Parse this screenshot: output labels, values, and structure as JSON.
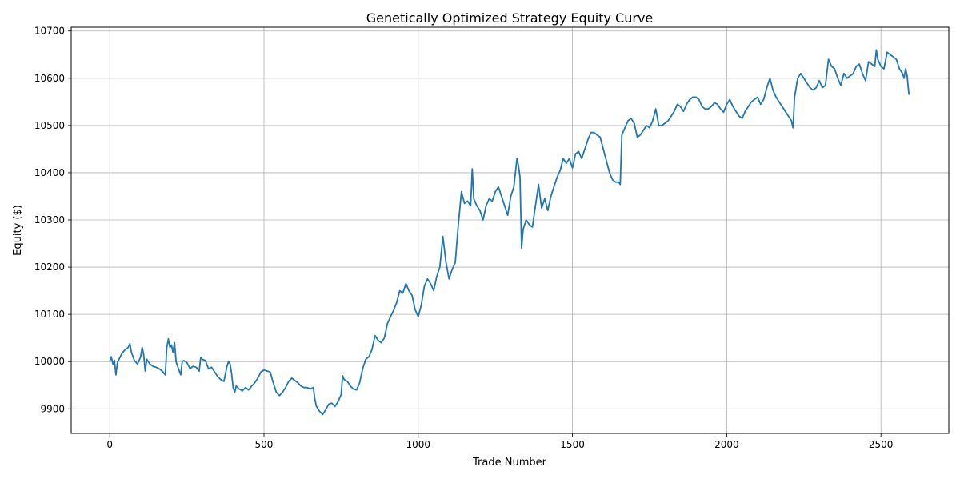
{
  "chart_data": {
    "type": "line",
    "title": "Genetically Optimized Strategy Equity Curve",
    "xlabel": "Trade Number",
    "ylabel": "Equity ($)",
    "xlim": [
      -125,
      2720
    ],
    "ylim": [
      9848,
      10708
    ],
    "xticks": [
      0,
      500,
      1000,
      1500,
      2000,
      2500
    ],
    "yticks": [
      9900,
      10000,
      10100,
      10200,
      10300,
      10400,
      10500,
      10600,
      10700
    ],
    "grid": true,
    "line_color": "#1f77b4",
    "series": [
      {
        "points": [
          [
            0,
            10000
          ],
          [
            5,
            10010
          ],
          [
            10,
            9995
          ],
          [
            15,
            10003
          ],
          [
            20,
            9972
          ],
          [
            25,
            9998
          ],
          [
            30,
            10005
          ],
          [
            40,
            10018
          ],
          [
            50,
            10025
          ],
          [
            60,
            10030
          ],
          [
            65,
            10038
          ],
          [
            70,
            10020
          ],
          [
            80,
            10002
          ],
          [
            90,
            9995
          ],
          [
            100,
            10010
          ],
          [
            105,
            10030
          ],
          [
            110,
            10015
          ],
          [
            115,
            9980
          ],
          [
            120,
            10005
          ],
          [
            130,
            9995
          ],
          [
            140,
            9990
          ],
          [
            150,
            9988
          ],
          [
            160,
            9985
          ],
          [
            170,
            9980
          ],
          [
            180,
            9972
          ],
          [
            185,
            10030
          ],
          [
            190,
            10048
          ],
          [
            195,
            10030
          ],
          [
            200,
            10035
          ],
          [
            205,
            10020
          ],
          [
            210,
            10040
          ],
          [
            215,
            10000
          ],
          [
            220,
            9990
          ],
          [
            230,
            9972
          ],
          [
            235,
            10000
          ],
          [
            240,
            10002
          ],
          [
            250,
            9998
          ],
          [
            260,
            9985
          ],
          [
            270,
            9990
          ],
          [
            280,
            9988
          ],
          [
            290,
            9980
          ],
          [
            295,
            10008
          ],
          [
            300,
            10005
          ],
          [
            310,
            10002
          ],
          [
            320,
            9985
          ],
          [
            330,
            9988
          ],
          [
            340,
            9978
          ],
          [
            350,
            9968
          ],
          [
            360,
            9962
          ],
          [
            370,
            9958
          ],
          [
            380,
            9990
          ],
          [
            385,
            10000
          ],
          [
            390,
            9995
          ],
          [
            395,
            9975
          ],
          [
            400,
            9945
          ],
          [
            405,
            9935
          ],
          [
            410,
            9948
          ],
          [
            420,
            9942
          ],
          [
            430,
            9938
          ],
          [
            440,
            9945
          ],
          [
            450,
            9940
          ],
          [
            460,
            9948
          ],
          [
            470,
            9955
          ],
          [
            480,
            9965
          ],
          [
            490,
            9978
          ],
          [
            500,
            9982
          ],
          [
            510,
            9980
          ],
          [
            520,
            9978
          ],
          [
            530,
            9955
          ],
          [
            540,
            9935
          ],
          [
            550,
            9928
          ],
          [
            560,
            9935
          ],
          [
            570,
            9945
          ],
          [
            580,
            9958
          ],
          [
            590,
            9965
          ],
          [
            600,
            9960
          ],
          [
            610,
            9955
          ],
          [
            620,
            9948
          ],
          [
            630,
            9945
          ],
          [
            640,
            9945
          ],
          [
            650,
            9942
          ],
          [
            660,
            9945
          ],
          [
            665,
            9920
          ],
          [
            670,
            9905
          ],
          [
            680,
            9895
          ],
          [
            690,
            9888
          ],
          [
            700,
            9898
          ],
          [
            710,
            9910
          ],
          [
            720,
            9912
          ],
          [
            730,
            9905
          ],
          [
            740,
            9915
          ],
          [
            750,
            9930
          ],
          [
            755,
            9970
          ],
          [
            760,
            9962
          ],
          [
            770,
            9958
          ],
          [
            780,
            9948
          ],
          [
            790,
            9942
          ],
          [
            800,
            9940
          ],
          [
            810,
            9955
          ],
          [
            820,
            9985
          ],
          [
            830,
            10005
          ],
          [
            840,
            10010
          ],
          [
            850,
            10025
          ],
          [
            860,
            10055
          ],
          [
            870,
            10045
          ],
          [
            880,
            10040
          ],
          [
            890,
            10050
          ],
          [
            900,
            10080
          ],
          [
            910,
            10095
          ],
          [
            920,
            10108
          ],
          [
            930,
            10125
          ],
          [
            940,
            10150
          ],
          [
            950,
            10145
          ],
          [
            960,
            10165
          ],
          [
            970,
            10150
          ],
          [
            980,
            10140
          ],
          [
            990,
            10110
          ],
          [
            1000,
            10095
          ],
          [
            1010,
            10120
          ],
          [
            1020,
            10160
          ],
          [
            1030,
            10175
          ],
          [
            1040,
            10165
          ],
          [
            1050,
            10150
          ],
          [
            1060,
            10180
          ],
          [
            1070,
            10200
          ],
          [
            1080,
            10265
          ],
          [
            1090,
            10210
          ],
          [
            1100,
            10175
          ],
          [
            1110,
            10195
          ],
          [
            1120,
            10210
          ],
          [
            1130,
            10290
          ],
          [
            1140,
            10360
          ],
          [
            1150,
            10335
          ],
          [
            1160,
            10340
          ],
          [
            1170,
            10330
          ],
          [
            1175,
            10408
          ],
          [
            1180,
            10345
          ],
          [
            1190,
            10330
          ],
          [
            1200,
            10320
          ],
          [
            1210,
            10300
          ],
          [
            1220,
            10330
          ],
          [
            1230,
            10345
          ],
          [
            1240,
            10340
          ],
          [
            1250,
            10360
          ],
          [
            1260,
            10370
          ],
          [
            1270,
            10350
          ],
          [
            1280,
            10330
          ],
          [
            1290,
            10310
          ],
          [
            1300,
            10350
          ],
          [
            1310,
            10370
          ],
          [
            1320,
            10430
          ],
          [
            1325,
            10415
          ],
          [
            1330,
            10390
          ],
          [
            1335,
            10240
          ],
          [
            1340,
            10280
          ],
          [
            1350,
            10300
          ],
          [
            1360,
            10290
          ],
          [
            1370,
            10285
          ],
          [
            1380,
            10330
          ],
          [
            1390,
            10375
          ],
          [
            1400,
            10325
          ],
          [
            1410,
            10345
          ],
          [
            1420,
            10320
          ],
          [
            1430,
            10350
          ],
          [
            1440,
            10370
          ],
          [
            1450,
            10390
          ],
          [
            1460,
            10405
          ],
          [
            1470,
            10430
          ],
          [
            1480,
            10420
          ],
          [
            1490,
            10430
          ],
          [
            1500,
            10410
          ],
          [
            1510,
            10440
          ],
          [
            1520,
            10445
          ],
          [
            1530,
            10430
          ],
          [
            1540,
            10450
          ],
          [
            1550,
            10470
          ],
          [
            1560,
            10485
          ],
          [
            1570,
            10485
          ],
          [
            1580,
            10480
          ],
          [
            1590,
            10475
          ],
          [
            1600,
            10450
          ],
          [
            1610,
            10425
          ],
          [
            1620,
            10400
          ],
          [
            1630,
            10385
          ],
          [
            1640,
            10380
          ],
          [
            1650,
            10380
          ],
          [
            1655,
            10375
          ],
          [
            1660,
            10480
          ],
          [
            1670,
            10495
          ],
          [
            1680,
            10510
          ],
          [
            1690,
            10515
          ],
          [
            1700,
            10505
          ],
          [
            1710,
            10475
          ],
          [
            1720,
            10480
          ],
          [
            1730,
            10490
          ],
          [
            1740,
            10500
          ],
          [
            1750,
            10495
          ],
          [
            1760,
            10510
          ],
          [
            1770,
            10535
          ],
          [
            1780,
            10500
          ],
          [
            1790,
            10500
          ],
          [
            1800,
            10505
          ],
          [
            1810,
            10510
          ],
          [
            1820,
            10520
          ],
          [
            1830,
            10530
          ],
          [
            1840,
            10545
          ],
          [
            1850,
            10540
          ],
          [
            1860,
            10530
          ],
          [
            1870,
            10545
          ],
          [
            1880,
            10555
          ],
          [
            1890,
            10560
          ],
          [
            1900,
            10560
          ],
          [
            1910,
            10555
          ],
          [
            1920,
            10540
          ],
          [
            1930,
            10535
          ],
          [
            1940,
            10535
          ],
          [
            1950,
            10540
          ],
          [
            1960,
            10548
          ],
          [
            1970,
            10545
          ],
          [
            1980,
            10535
          ],
          [
            1990,
            10528
          ],
          [
            2000,
            10545
          ],
          [
            2010,
            10555
          ],
          [
            2020,
            10540
          ],
          [
            2030,
            10530
          ],
          [
            2040,
            10520
          ],
          [
            2050,
            10515
          ],
          [
            2060,
            10530
          ],
          [
            2070,
            10540
          ],
          [
            2080,
            10550
          ],
          [
            2090,
            10555
          ],
          [
            2100,
            10560
          ],
          [
            2110,
            10545
          ],
          [
            2120,
            10555
          ],
          [
            2130,
            10580
          ],
          [
            2140,
            10600
          ],
          [
            2150,
            10575
          ],
          [
            2160,
            10560
          ],
          [
            2170,
            10550
          ],
          [
            2180,
            10540
          ],
          [
            2190,
            10530
          ],
          [
            2200,
            10520
          ],
          [
            2210,
            10510
          ],
          [
            2215,
            10495
          ],
          [
            2220,
            10560
          ],
          [
            2230,
            10600
          ],
          [
            2240,
            10610
          ],
          [
            2250,
            10600
          ],
          [
            2260,
            10590
          ],
          [
            2270,
            10580
          ],
          [
            2280,
            10575
          ],
          [
            2290,
            10580
          ],
          [
            2300,
            10595
          ],
          [
            2310,
            10580
          ],
          [
            2320,
            10585
          ],
          [
            2330,
            10640
          ],
          [
            2340,
            10625
          ],
          [
            2350,
            10620
          ],
          [
            2360,
            10600
          ],
          [
            2370,
            10585
          ],
          [
            2380,
            10610
          ],
          [
            2390,
            10600
          ],
          [
            2400,
            10605
          ],
          [
            2410,
            10610
          ],
          [
            2420,
            10625
          ],
          [
            2430,
            10630
          ],
          [
            2440,
            10610
          ],
          [
            2450,
            10595
          ],
          [
            2460,
            10635
          ],
          [
            2470,
            10630
          ],
          [
            2480,
            10625
          ],
          [
            2485,
            10660
          ],
          [
            2490,
            10640
          ],
          [
            2500,
            10625
          ],
          [
            2510,
            10620
          ],
          [
            2520,
            10655
          ],
          [
            2530,
            10650
          ],
          [
            2540,
            10645
          ],
          [
            2550,
            10640
          ],
          [
            2560,
            10620
          ],
          [
            2570,
            10610
          ],
          [
            2575,
            10600
          ],
          [
            2580,
            10620
          ],
          [
            2585,
            10605
          ],
          [
            2590,
            10570
          ],
          [
            2592,
            10565
          ]
        ]
      }
    ]
  }
}
